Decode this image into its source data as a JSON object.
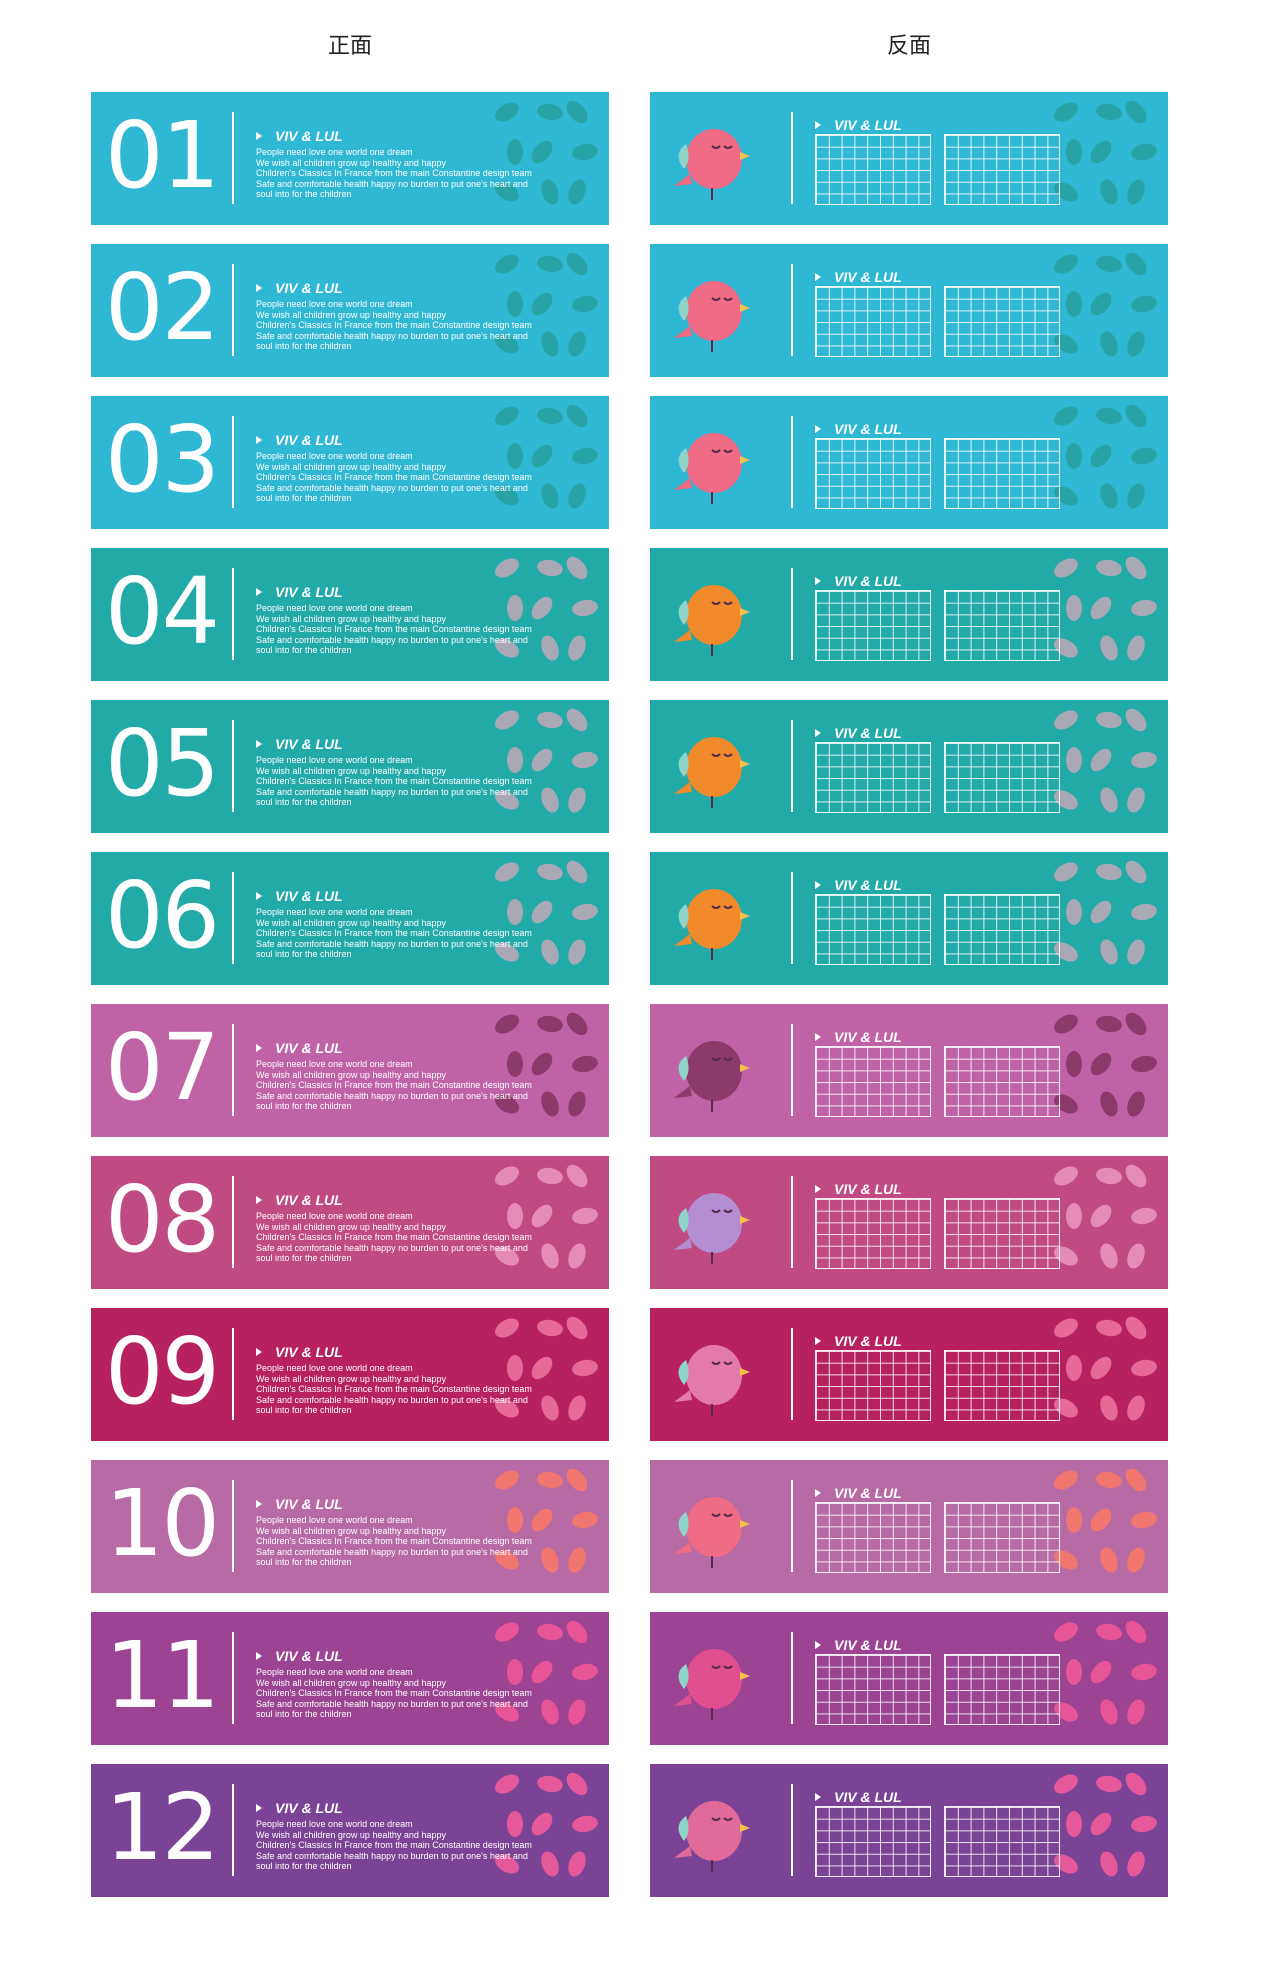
{
  "header": {
    "front": "正面",
    "back": "反面"
  },
  "brand": "VIV & LUL",
  "text_lines": [
    "People need love one world one dream",
    "We wish all children grow up healthy and happy",
    "Children's Classics  In France from the main Constantine design team",
    "Safe and comfortable health happy no burden to put one's heart and",
    "soul into for the children"
  ],
  "cards": [
    {
      "number": "01",
      "color": "#2fb8d3",
      "bird_color": "#ef6b86",
      "decor_color": "#27a3a6"
    },
    {
      "number": "02",
      "color": "#2fb8d3",
      "bird_color": "#ef6b86",
      "decor_color": "#27a3a6"
    },
    {
      "number": "03",
      "color": "#2fb8d3",
      "bird_color": "#ef6b86",
      "decor_color": "#27a3a6"
    },
    {
      "number": "04",
      "color": "#22aaa9",
      "bird_color": "#f08a2a",
      "decor_color": "#a8a9b5"
    },
    {
      "number": "05",
      "color": "#22aaa9",
      "bird_color": "#f08a2a",
      "decor_color": "#a8a9b5"
    },
    {
      "number": "06",
      "color": "#22aaa9",
      "bird_color": "#f08a2a",
      "decor_color": "#a8a9b5"
    },
    {
      "number": "07",
      "color": "#c063a6",
      "bird_color": "#8b3a6a",
      "decor_color": "#8b3a6a"
    },
    {
      "number": "08",
      "color": "#c04a82",
      "bird_color": "#b48ed2",
      "decor_color": "#e48cb6"
    },
    {
      "number": "09",
      "color": "#b8215f",
      "bird_color": "#e27bab",
      "decor_color": "#e56a98"
    },
    {
      "number": "10",
      "color": "#b86aa4",
      "bird_color": "#ef6b86",
      "decor_color": "#f0766f"
    },
    {
      "number": "11",
      "color": "#9c4394",
      "bird_color": "#e0508f",
      "decor_color": "#e85597"
    },
    {
      "number": "12",
      "color": "#7a4395",
      "bird_color": "#e06b9a",
      "decor_color": "#e5599a"
    }
  ]
}
